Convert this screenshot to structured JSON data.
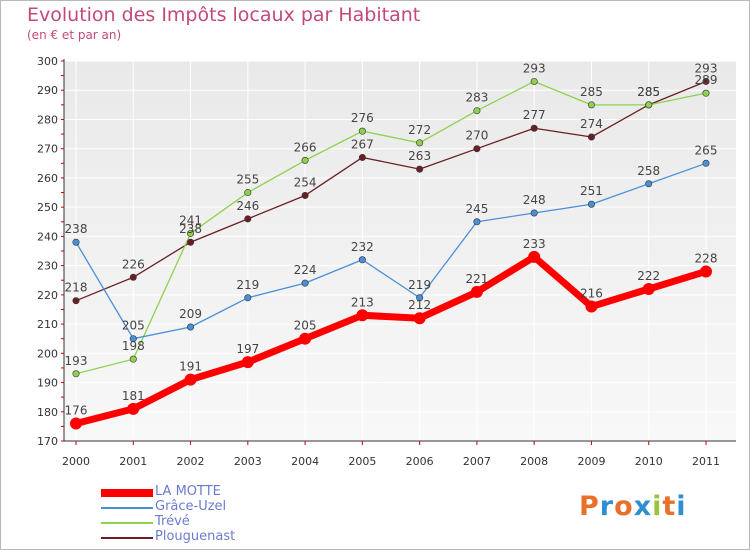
{
  "title": "Evolution des Impôts locaux par Habitant",
  "subtitle": "(en € et par an)",
  "logo": {
    "text": "Proxiti",
    "colors": [
      "#e8702a",
      "#2f8fd0",
      "#e8702a",
      "#2f8fd0",
      "#9ac43c",
      "#e8702a",
      "#2f8fd0"
    ]
  },
  "chart_data": {
    "type": "line",
    "x": [
      "2000",
      "2001",
      "2002",
      "2003",
      "2004",
      "2005",
      "2006",
      "2007",
      "2008",
      "2009",
      "2010",
      "2011"
    ],
    "ylim": [
      170,
      300
    ],
    "yticks": [
      170,
      180,
      190,
      200,
      210,
      220,
      230,
      240,
      250,
      260,
      270,
      280,
      290,
      300
    ],
    "grid": true,
    "legend": "bottom-left",
    "series": [
      {
        "name": "Plouguenast",
        "color": "#6b1f24",
        "values": [
          218,
          226,
          238,
          246,
          254,
          267,
          263,
          270,
          277,
          274,
          285,
          293
        ]
      },
      {
        "name": "Trévé",
        "color": "#8fd14f",
        "values": [
          193,
          198,
          241,
          255,
          266,
          276,
          272,
          283,
          293,
          285,
          285,
          289
        ]
      },
      {
        "name": "Grâce-Uzel",
        "color": "#4a90d9",
        "values": [
          238,
          205,
          209,
          219,
          224,
          232,
          219,
          245,
          248,
          251,
          258,
          265
        ]
      },
      {
        "name": "LA MOTTE",
        "color": "#ff0000",
        "values": [
          176,
          181,
          191,
          197,
          205,
          213,
          212,
          221,
          233,
          216,
          222,
          228
        ]
      }
    ]
  }
}
